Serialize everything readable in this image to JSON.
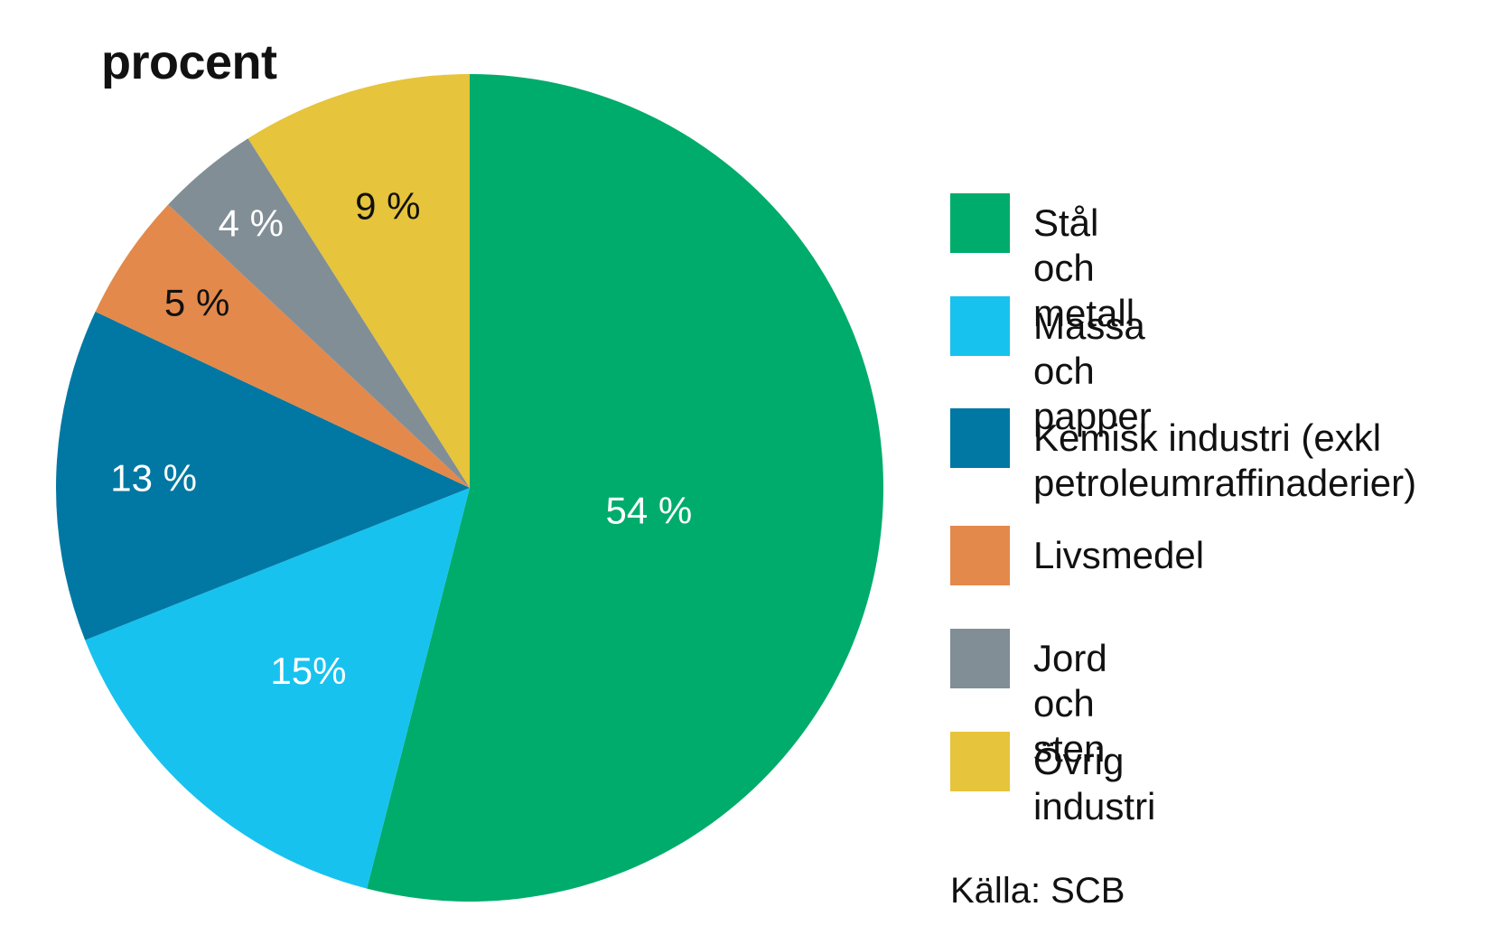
{
  "chart_data": {
    "type": "pie",
    "title": "procent",
    "categories": [
      "Stål och metall",
      "Massa och papper",
      "Kemisk industri (exkl\npetroleumraffinaderier)",
      "Livsmedel",
      "Jord och sten",
      "Övrig industri"
    ],
    "values": [
      54,
      15,
      13,
      5,
      4,
      9
    ],
    "data_labels": [
      "54 %",
      "15%",
      "13 %",
      "5 %",
      "4 %",
      "9 %"
    ],
    "colors": [
      "#00ac6b",
      "#18c2ee",
      "#0078a3",
      "#e3894b",
      "#818e96",
      "#e6c43b"
    ],
    "label_colors": [
      "#ffffff",
      "#ffffff",
      "#ffffff",
      "#111111",
      "#ffffff",
      "#111111"
    ],
    "start_angle": "12 o'clock",
    "direction": "clockwise",
    "legend_position": "right",
    "source": "Källa: SCB"
  }
}
